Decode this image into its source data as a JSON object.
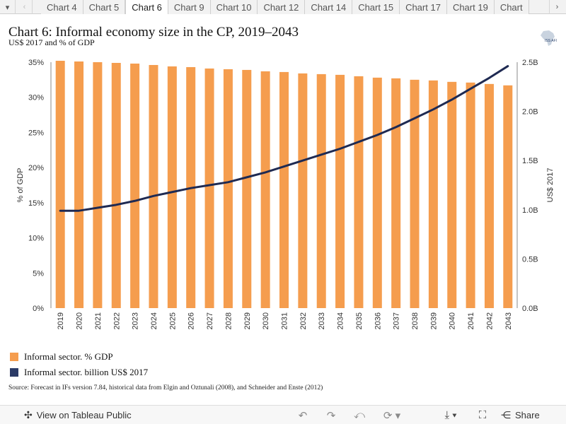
{
  "tabbar": {
    "tabs": [
      "Chart 4",
      "Chart 5",
      "Chart 6",
      "Chart 9",
      "Chart 10",
      "Chart 12",
      "Chart 14",
      "Chart 15",
      "Chart 17",
      "Chart 19",
      "Chart"
    ],
    "active_tab": "Chart 6",
    "menu_icon": "caret-down-icon",
    "prev_icon": "chevron-left-icon",
    "next_icon": "chevron-right-icon"
  },
  "header": {
    "title": "Chart 6: Informal economy size in the CP, 2019–2043",
    "subtitle": "US$ 2017 and % of GDP",
    "logo_text": "ISS AFI"
  },
  "chart_data": {
    "type": "bar",
    "categories": [
      "2019",
      "2020",
      "2021",
      "2022",
      "2023",
      "2024",
      "2025",
      "2026",
      "2027",
      "2028",
      "2029",
      "2030",
      "2031",
      "2032",
      "2033",
      "2034",
      "2035",
      "2036",
      "2037",
      "2038",
      "2039",
      "2040",
      "2041",
      "2042",
      "2043"
    ],
    "series": [
      {
        "name": "Informal sector. % GDP",
        "type": "bar",
        "axis": "left",
        "color": "#f59d4e",
        "values": [
          35.2,
          35.1,
          35.0,
          34.9,
          34.8,
          34.6,
          34.4,
          34.3,
          34.1,
          34.0,
          33.9,
          33.7,
          33.6,
          33.4,
          33.3,
          33.2,
          33.0,
          32.8,
          32.7,
          32.5,
          32.4,
          32.2,
          32.1,
          31.9,
          31.7
        ]
      },
      {
        "name": "Informal sector. billion US$ 2017",
        "type": "line",
        "axis": "right",
        "color": "#1f2a52",
        "values": [
          0.99,
          0.99,
          1.02,
          1.05,
          1.09,
          1.14,
          1.18,
          1.22,
          1.25,
          1.28,
          1.33,
          1.38,
          1.44,
          1.5,
          1.56,
          1.62,
          1.69,
          1.76,
          1.84,
          1.93,
          2.02,
          2.12,
          2.23,
          2.34,
          2.46
        ]
      }
    ],
    "ylabel": "% of GDP",
    "ylim": [
      0,
      35
    ],
    "yticks": [
      "0%",
      "5%",
      "10%",
      "15%",
      "20%",
      "25%",
      "30%",
      "35%"
    ],
    "y2label": "US$ 2017",
    "y2lim": [
      0,
      2.5
    ],
    "y2ticks": [
      "0.0B",
      "0.5B",
      "1.0B",
      "1.5B",
      "2.0B",
      "2.5B"
    ],
    "grid": false,
    "legend_placement": "bottom-left"
  },
  "source": "Source: Forecast in IFs version 7.84, historical data from Elgin and Oztunali (2008), and Schneider and Enste (2012)",
  "toolbar": {
    "view_label": "View on Tableau Public",
    "share_label": "Share",
    "view_icon": "tableau-logo-icon",
    "undo_icon": "undo-icon",
    "redo_icon": "redo-icon",
    "revert_icon": "revert-icon",
    "refresh_icon": "refresh-icon",
    "download_icon": "download-icon",
    "fullscreen_icon": "fullscreen-icon",
    "share_icon": "share-icon"
  }
}
